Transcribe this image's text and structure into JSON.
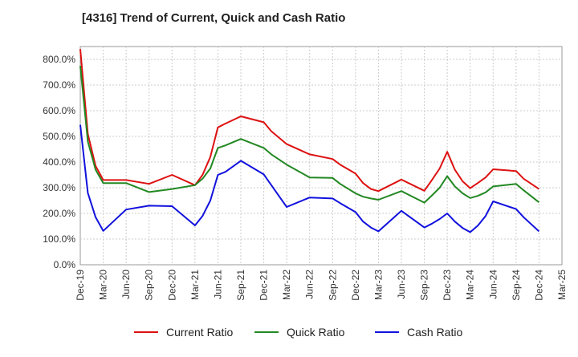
{
  "chart_data": {
    "type": "line",
    "title": "[4316]  Trend of Current, Quick and Cash Ratio",
    "xlabel": "",
    "ylabel": "",
    "ylim": [
      0,
      850
    ],
    "yticks": [
      0,
      100,
      200,
      300,
      400,
      500,
      600,
      700,
      800
    ],
    "ytick_labels": [
      "0.0%",
      "100.0%",
      "200.0%",
      "300.0%",
      "400.0%",
      "500.0%",
      "600.0%",
      "700.0%",
      "800.0%"
    ],
    "xtick_labels": [
      "Dec-19",
      "Mar-20",
      "Jun-20",
      "Sep-20",
      "Dec-20",
      "Mar-21",
      "Jun-21",
      "Sep-21",
      "Dec-21",
      "Mar-22",
      "Jun-22",
      "Sep-22",
      "Dec-22",
      "Mar-23",
      "Jun-23",
      "Sep-23",
      "Dec-23",
      "Mar-24",
      "Jun-24",
      "Sep-24",
      "Dec-24",
      "Mar-25"
    ],
    "xlim": [
      0,
      21
    ],
    "grid": true,
    "legend_position": "bottom-center",
    "series": [
      {
        "name": "Current Ratio",
        "color": "#dd1111",
        "points": [
          [
            0,
            840
          ],
          [
            0.33,
            510
          ],
          [
            0.67,
            385
          ],
          [
            1,
            330
          ],
          [
            2,
            330
          ],
          [
            3,
            315
          ],
          [
            4,
            350
          ],
          [
            5,
            310
          ],
          [
            5.33,
            350
          ],
          [
            5.67,
            420
          ],
          [
            6,
            535
          ],
          [
            6.33,
            550
          ],
          [
            7,
            578
          ],
          [
            8,
            555
          ],
          [
            8.33,
            520
          ],
          [
            9,
            470
          ],
          [
            10,
            430
          ],
          [
            11,
            412
          ],
          [
            11.33,
            390
          ],
          [
            12,
            355
          ],
          [
            12.33,
            318
          ],
          [
            12.67,
            295
          ],
          [
            13,
            287
          ],
          [
            14,
            332
          ],
          [
            15,
            288
          ],
          [
            15.33,
            330
          ],
          [
            15.67,
            375
          ],
          [
            16,
            440
          ],
          [
            16.33,
            370
          ],
          [
            16.67,
            325
          ],
          [
            17,
            298
          ],
          [
            17.33,
            318
          ],
          [
            17.67,
            340
          ],
          [
            18,
            372
          ],
          [
            19,
            365
          ],
          [
            19.33,
            335
          ],
          [
            20,
            295
          ]
        ]
      },
      {
        "name": "Quick Ratio",
        "color": "#228822",
        "points": [
          [
            0,
            775
          ],
          [
            0.33,
            480
          ],
          [
            0.67,
            370
          ],
          [
            1,
            318
          ],
          [
            2,
            318
          ],
          [
            3,
            283
          ],
          [
            4,
            295
          ],
          [
            5,
            310
          ],
          [
            5.33,
            335
          ],
          [
            5.67,
            375
          ],
          [
            6,
            455
          ],
          [
            6.33,
            465
          ],
          [
            7,
            490
          ],
          [
            8,
            455
          ],
          [
            8.33,
            430
          ],
          [
            9,
            390
          ],
          [
            10,
            340
          ],
          [
            11,
            338
          ],
          [
            11.33,
            315
          ],
          [
            12,
            278
          ],
          [
            12.33,
            265
          ],
          [
            12.67,
            258
          ],
          [
            13,
            253
          ],
          [
            14,
            287
          ],
          [
            15,
            242
          ],
          [
            15.33,
            270
          ],
          [
            15.67,
            300
          ],
          [
            16,
            345
          ],
          [
            16.33,
            305
          ],
          [
            16.67,
            278
          ],
          [
            17,
            260
          ],
          [
            17.33,
            268
          ],
          [
            17.67,
            282
          ],
          [
            18,
            305
          ],
          [
            19,
            315
          ],
          [
            19.33,
            290
          ],
          [
            20,
            243
          ]
        ]
      },
      {
        "name": "Cash Ratio",
        "color": "#1111dd",
        "points": [
          [
            0,
            545
          ],
          [
            0.33,
            280
          ],
          [
            0.67,
            185
          ],
          [
            1,
            132
          ],
          [
            2,
            215
          ],
          [
            3,
            230
          ],
          [
            4,
            228
          ],
          [
            5,
            153
          ],
          [
            5.33,
            190
          ],
          [
            5.67,
            250
          ],
          [
            6,
            350
          ],
          [
            6.33,
            362
          ],
          [
            7,
            405
          ],
          [
            8,
            352
          ],
          [
            8.33,
            310
          ],
          [
            9,
            225
          ],
          [
            10,
            262
          ],
          [
            11,
            258
          ],
          [
            11.33,
            240
          ],
          [
            12,
            205
          ],
          [
            12.33,
            168
          ],
          [
            12.67,
            145
          ],
          [
            13,
            130
          ],
          [
            14,
            210
          ],
          [
            15,
            145
          ],
          [
            15.33,
            160
          ],
          [
            15.67,
            178
          ],
          [
            16,
            200
          ],
          [
            16.33,
            168
          ],
          [
            16.67,
            143
          ],
          [
            17,
            127
          ],
          [
            17.33,
            152
          ],
          [
            17.67,
            190
          ],
          [
            18,
            247
          ],
          [
            19,
            217
          ],
          [
            19.33,
            185
          ],
          [
            20,
            130
          ]
        ]
      }
    ]
  }
}
